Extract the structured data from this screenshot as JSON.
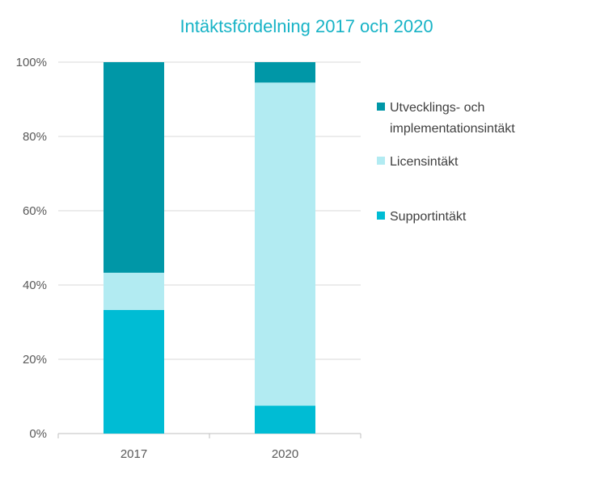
{
  "chart_data": {
    "type": "bar",
    "stacked": true,
    "percent": true,
    "title": "Intäktsfördelning 2017 och 2020",
    "xlabel": "",
    "ylabel": "",
    "categories": [
      "2017",
      "2020"
    ],
    "ylim": [
      0,
      100
    ],
    "y_ticks": [
      "0%",
      "20%",
      "40%",
      "60%",
      "80%",
      "100%"
    ],
    "grid": true,
    "legend_position": "right",
    "series": [
      {
        "name": "Supportintäkt",
        "color": "#00BCD4",
        "values": [
          33.3,
          7.5
        ]
      },
      {
        "name": "Licensintäkt",
        "color": "#B2EBF2",
        "values": [
          10.0,
          87.0
        ]
      },
      {
        "name": "Utvecklings- och implementationsintäkt",
        "color": "#0097A7",
        "values": [
          56.7,
          5.5
        ]
      }
    ],
    "legend": [
      {
        "lines": [
          "Utvecklings- och",
          "implementationsintäkt"
        ],
        "color": "#0097A7"
      },
      {
        "lines": [
          "Licensintäkt"
        ],
        "color": "#B2EBF2"
      },
      {
        "lines": [
          "Supportintäkt"
        ],
        "color": "#00BCD4"
      }
    ],
    "title_color": "#17B3C6"
  }
}
